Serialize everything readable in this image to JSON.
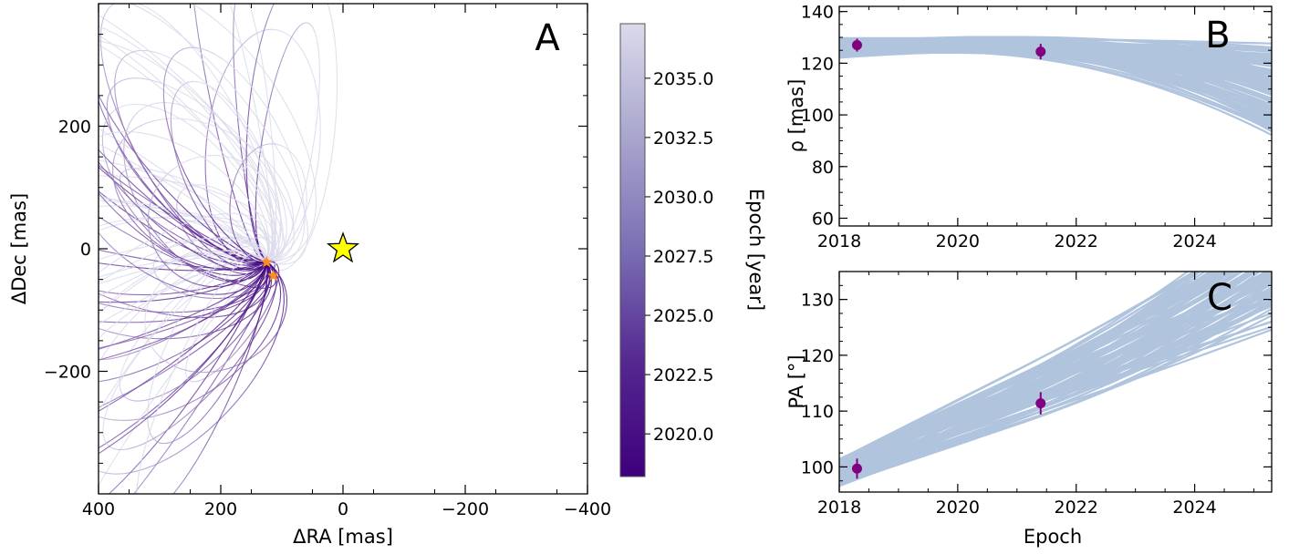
{
  "chart_data": [
    {
      "panel_label": "A",
      "type": "orbit-plot",
      "xlabel": "ΔRA [mas]",
      "ylabel": "ΔDec [mas]",
      "xlim": [
        400,
        -400
      ],
      "ylim": [
        -400,
        400
      ],
      "xticks": [
        400,
        200,
        0,
        -200,
        -400
      ],
      "xtick_labels": [
        "400",
        "200",
        "0",
        "−200",
        "−400"
      ],
      "yticks": [
        200,
        0,
        -200
      ],
      "ytick_labels": [
        "200",
        "0",
        "−200"
      ],
      "host_star": {
        "ra": 0,
        "dec": 0,
        "color": "#ffff00"
      },
      "companion_epochs": [
        {
          "epoch": 2018.3,
          "ra": 125,
          "dec": -22
        },
        {
          "epoch": 2021.4,
          "ra": 114,
          "dec": -44
        }
      ],
      "companion_color": "#ff8c1a",
      "orbits_colormap": "Purples (epoch 2018–2038)",
      "colorbar": {
        "label": "Epoch [year]",
        "range": [
          2018.2,
          2037.3
        ],
        "ticks": [
          2020.0,
          2022.5,
          2025.0,
          2027.5,
          2030.0,
          2032.5,
          2035.0
        ],
        "tick_labels": [
          "2020.0",
          "2022.5",
          "2025.0",
          "2027.5",
          "2030.0",
          "2032.5",
          "2035.0"
        ],
        "color_low": "#3f007d",
        "color_high": "#dadaeb"
      }
    },
    {
      "panel_label": "B",
      "type": "line",
      "ylabel": "ρ [mas]",
      "xlim": [
        2018,
        2025.3
      ],
      "ylim": [
        57,
        142
      ],
      "xticks": [
        2018,
        2020,
        2022,
        2024
      ],
      "xtick_labels": [
        "2018",
        "2020",
        "2022",
        "2024"
      ],
      "yticks": [
        60,
        80,
        100,
        120,
        140
      ],
      "ytick_labels": [
        "60",
        "80",
        "100",
        "120",
        "140"
      ],
      "line_color": "#b0c4de",
      "data_points": [
        {
          "x": 2018.3,
          "y": 127,
          "yerr": 2.5
        },
        {
          "x": 2021.4,
          "y": 124.5,
          "yerr": 3
        }
      ],
      "point_color": "#800080"
    },
    {
      "panel_label": "C",
      "type": "line",
      "xlabel": "Epoch",
      "ylabel": "PA [°]",
      "xlim": [
        2018,
        2025.3
      ],
      "ylim": [
        95.5,
        135
      ],
      "xticks": [
        2018,
        2020,
        2022,
        2024
      ],
      "xtick_labels": [
        "2018",
        "2020",
        "2022",
        "2024"
      ],
      "yticks": [
        100,
        110,
        120,
        130
      ],
      "ytick_labels": [
        "100",
        "110",
        "120",
        "130"
      ],
      "line_color": "#b0c4de",
      "data_points": [
        {
          "x": 2018.3,
          "y": 99.7,
          "yerr": 1.8
        },
        {
          "x": 2021.4,
          "y": 111.4,
          "yerr": 2
        }
      ],
      "point_color": "#800080"
    }
  ]
}
